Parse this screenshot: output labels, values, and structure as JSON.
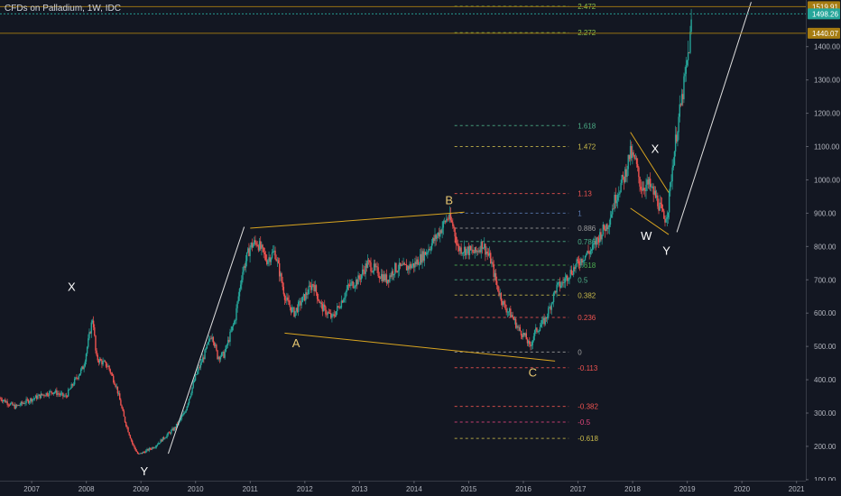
{
  "chart": {
    "title": "CFDs on Palladium, 1W, IDC"
  },
  "chart_data": {
    "type": "candlestick",
    "title": "CFDs on Palladium, 1W, IDC",
    "timeframe": "1W",
    "source": "IDC",
    "x_ticks": [
      "2007",
      "2008",
      "2009",
      "2010",
      "2011",
      "2012",
      "2013",
      "2014",
      "2015",
      "2016",
      "2017",
      "2018",
      "2019",
      "2020",
      "2021"
    ],
    "y_ticks": [
      100,
      200,
      300,
      400,
      500,
      600,
      700,
      800,
      900,
      1000,
      1100,
      1200,
      1300,
      1400
    ],
    "y_tick_labels": [
      "100.00",
      "200.00",
      "300.00",
      "400.00",
      "500.00",
      "600.00",
      "700.00",
      "800.00",
      "900.00",
      "1000.00",
      "1100.00",
      "1200.00",
      "1300.00",
      "1400.00"
    ],
    "ylim": [
      97,
      1540
    ],
    "xlim": [
      2006.42,
      2021.17
    ],
    "price_tags": [
      {
        "value": 1519.91,
        "label": "1519.91",
        "color": "#a67c12",
        "line": true
      },
      {
        "value": 1498.26,
        "label": "1498.26",
        "color": "#26a69a",
        "line": true
      },
      {
        "value": 1440.07,
        "label": "1440.07",
        "color": "#a67c12",
        "line": true
      }
    ],
    "waves": [
      {
        "label": "X",
        "x": 2007.73,
        "y": 681,
        "color": "#ffffff"
      },
      {
        "label": "Y",
        "x": 2009.06,
        "y": 127,
        "color": "#ffffff"
      },
      {
        "label": "A",
        "x": 2011.84,
        "y": 511,
        "color": "#e8c872"
      },
      {
        "label": "B",
        "x": 2014.64,
        "y": 940,
        "color": "#e8c872"
      },
      {
        "label": "C",
        "x": 2016.17,
        "y": 423,
        "color": "#e8c872"
      },
      {
        "label": "W",
        "x": 2018.25,
        "y": 833,
        "color": "#ffffff"
      },
      {
        "label": "X",
        "x": 2018.41,
        "y": 1094,
        "color": "#ffffff"
      },
      {
        "label": "Y",
        "x": 2018.62,
        "y": 789,
        "color": "#ffffff"
      }
    ],
    "fibonacci": {
      "x_start": 2014.74,
      "x_end": 2016.83,
      "levels": [
        {
          "label": "2.472",
          "value": 1521,
          "color": "#8bc34a"
        },
        {
          "label": "2.272",
          "value": 1442,
          "color": "#8bc34a"
        },
        {
          "label": "1.618",
          "value": 1163,
          "color": "#4caf87"
        },
        {
          "label": "1.472",
          "value": 1100,
          "color": "#c8b94a"
        },
        {
          "label": "1.13",
          "value": 959,
          "color": "#ef5350"
        },
        {
          "label": "1",
          "value": 900,
          "color": "#5b7bb3"
        },
        {
          "label": "0.886",
          "value": 855,
          "color": "#9e9e9e"
        },
        {
          "label": "0.786",
          "value": 815,
          "color": "#4caf87"
        },
        {
          "label": "0.618",
          "value": 744,
          "color": "#4caf50"
        },
        {
          "label": "0.5",
          "value": 700,
          "color": "#4caf87"
        },
        {
          "label": "0.382",
          "value": 654,
          "color": "#c8b94a"
        },
        {
          "label": "0.236",
          "value": 587,
          "color": "#ef5350"
        },
        {
          "label": "0",
          "value": 483,
          "color": "#9e9e9e"
        },
        {
          "label": "-0.113",
          "value": 436,
          "color": "#ef5350"
        },
        {
          "label": "-0.382",
          "value": 320,
          "color": "#ef5350"
        },
        {
          "label": "-0.5",
          "value": 273,
          "color": "#e0457b"
        },
        {
          "label": "-0.618",
          "value": 224,
          "color": "#c8b94a"
        }
      ]
    },
    "trendlines": [
      {
        "from": [
          2011.0,
          855
        ],
        "to": [
          2014.92,
          903
        ],
        "color": "#d9a520"
      },
      {
        "from": [
          2011.63,
          540
        ],
        "to": [
          2016.58,
          456
        ],
        "color": "#d9a520"
      },
      {
        "from": [
          2017.96,
          1143
        ],
        "to": [
          2018.66,
          962
        ],
        "color": "#d9a520"
      },
      {
        "from": [
          2017.96,
          915
        ],
        "to": [
          2018.66,
          836
        ],
        "color": "#d9a520"
      },
      {
        "from": [
          2009.5,
          178
        ],
        "to": [
          2010.89,
          859
        ],
        "color": "#e0e0e0"
      },
      {
        "from": [
          2018.81,
          843
        ],
        "to": [
          2020.17,
          1534
        ],
        "color": "#e0e0e0"
      }
    ],
    "price_path": [
      [
        2006.42,
        345
      ],
      [
        2006.7,
        318
      ],
      [
        2006.9,
        335
      ],
      [
        2007.2,
        355
      ],
      [
        2007.4,
        365
      ],
      [
        2007.62,
        348
      ],
      [
        2007.8,
        400
      ],
      [
        2007.95,
        440
      ],
      [
        2008.12,
        590
      ],
      [
        2008.18,
        465
      ],
      [
        2008.4,
        440
      ],
      [
        2008.55,
        380
      ],
      [
        2008.7,
        280
      ],
      [
        2008.85,
        205
      ],
      [
        2008.95,
        175
      ],
      [
        2009.08,
        185
      ],
      [
        2009.25,
        200
      ],
      [
        2009.45,
        230
      ],
      [
        2009.62,
        255
      ],
      [
        2009.8,
        300
      ],
      [
        2010.0,
        410
      ],
      [
        2010.15,
        470
      ],
      [
        2010.3,
        540
      ],
      [
        2010.4,
        470
      ],
      [
        2010.52,
        475
      ],
      [
        2010.72,
        580
      ],
      [
        2010.85,
        720
      ],
      [
        2011.0,
        800
      ],
      [
        2011.12,
        815
      ],
      [
        2011.3,
        760
      ],
      [
        2011.45,
        785
      ],
      [
        2011.65,
        640
      ],
      [
        2011.8,
        600
      ],
      [
        2012.0,
        650
      ],
      [
        2012.15,
        690
      ],
      [
        2012.3,
        620
      ],
      [
        2012.5,
        585
      ],
      [
        2012.62,
        620
      ],
      [
        2012.8,
        680
      ],
      [
        2012.98,
        700
      ],
      [
        2013.15,
        750
      ],
      [
        2013.35,
        720
      ],
      [
        2013.5,
        700
      ],
      [
        2013.65,
        735
      ],
      [
        2013.82,
        735
      ],
      [
        2014.0,
        745
      ],
      [
        2014.2,
        780
      ],
      [
        2014.45,
        840
      ],
      [
        2014.62,
        890
      ],
      [
        2014.72,
        860
      ],
      [
        2014.8,
        795
      ],
      [
        2014.95,
        790
      ],
      [
        2015.12,
        780
      ],
      [
        2015.25,
        810
      ],
      [
        2015.4,
        760
      ],
      [
        2015.52,
        680
      ],
      [
        2015.65,
        620
      ],
      [
        2015.78,
        595
      ],
      [
        2015.9,
        555
      ],
      [
        2016.05,
        525
      ],
      [
        2016.12,
        495
      ],
      [
        2016.2,
        540
      ],
      [
        2016.3,
        560
      ],
      [
        2016.4,
        580
      ],
      [
        2016.5,
        625
      ],
      [
        2016.6,
        675
      ],
      [
        2016.72,
        690
      ],
      [
        2016.82,
        715
      ],
      [
        2016.95,
        740
      ],
      [
        2017.1,
        770
      ],
      [
        2017.25,
        790
      ],
      [
        2017.42,
        840
      ],
      [
        2017.55,
        870
      ],
      [
        2017.7,
        955
      ],
      [
        2017.85,
        1010
      ],
      [
        2017.95,
        1080
      ],
      [
        2018.05,
        1055
      ],
      [
        2018.15,
        980
      ],
      [
        2018.3,
        985
      ],
      [
        2018.45,
        940
      ],
      [
        2018.58,
        880
      ],
      [
        2018.65,
        915
      ],
      [
        2018.72,
        1030
      ],
      [
        2018.82,
        1160
      ],
      [
        2018.9,
        1240
      ],
      [
        2018.98,
        1330
      ],
      [
        2019.05,
        1420
      ],
      [
        2019.09,
        1498
      ]
    ]
  }
}
